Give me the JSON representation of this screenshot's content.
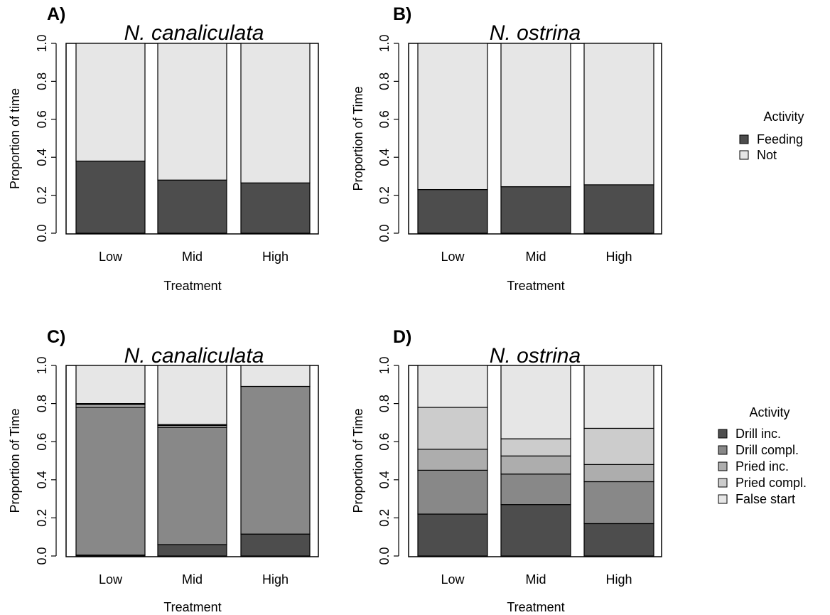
{
  "panels": [
    {
      "letter": "A)",
      "title": "N. canaliculata",
      "ylabel": "Proportion of time",
      "xlabel": "Treatment"
    },
    {
      "letter": "B)",
      "title": "N. ostrina",
      "ylabel": "Proportion of Time",
      "xlabel": "Treatment"
    },
    {
      "letter": "C)",
      "title": "N. canaliculata",
      "ylabel": "Proportion of Time",
      "xlabel": "Treatment"
    },
    {
      "letter": "D)",
      "title": "N. ostrina",
      "ylabel": "Proportion of Time",
      "xlabel": "Treatment"
    }
  ],
  "legends": [
    {
      "title": "Activity",
      "items": [
        {
          "label": "Feeding",
          "color": "#4d4d4d"
        },
        {
          "label": "Not",
          "color": "#e6e6e6"
        }
      ]
    },
    {
      "title": "Activity",
      "items": [
        {
          "label": "Drill inc.",
          "color": "#4d4d4d"
        },
        {
          "label": "Drill compl.",
          "color": "#888888"
        },
        {
          "label": "Pried inc.",
          "color": "#adadad"
        },
        {
          "label": "Pried compl.",
          "color": "#cccccc"
        },
        {
          "label": "False start",
          "color": "#e6e6e6"
        }
      ]
    }
  ],
  "chart_data": [
    {
      "type": "bar",
      "stacked": true,
      "title": "N. canaliculata",
      "xlabel": "Treatment",
      "ylabel": "Proportion of time",
      "ylim": [
        0,
        1
      ],
      "yticks": [
        "0.0",
        "0.2",
        "0.4",
        "0.6",
        "0.8",
        "1.0"
      ],
      "categories": [
        "Low",
        "Mid",
        "High"
      ],
      "series": [
        {
          "name": "Feeding",
          "color": "#4d4d4d",
          "values": [
            0.38,
            0.28,
            0.265
          ]
        },
        {
          "name": "Not",
          "color": "#e6e6e6",
          "values": [
            0.62,
            0.72,
            0.735
          ]
        }
      ]
    },
    {
      "type": "bar",
      "stacked": true,
      "title": "N. ostrina",
      "xlabel": "Treatment",
      "ylabel": "Proportion of Time",
      "ylim": [
        0,
        1
      ],
      "yticks": [
        "0.0",
        "0.2",
        "0.4",
        "0.6",
        "0.8",
        "1.0"
      ],
      "categories": [
        "Low",
        "Mid",
        "High"
      ],
      "series": [
        {
          "name": "Feeding",
          "color": "#4d4d4d",
          "values": [
            0.23,
            0.245,
            0.255
          ]
        },
        {
          "name": "Not",
          "color": "#e6e6e6",
          "values": [
            0.77,
            0.755,
            0.745
          ]
        }
      ]
    },
    {
      "type": "bar",
      "stacked": true,
      "title": "N. canaliculata",
      "xlabel": "Treatment",
      "ylabel": "Proportion of Time",
      "ylim": [
        0,
        1
      ],
      "yticks": [
        "0.0",
        "0.2",
        "0.4",
        "0.6",
        "0.8",
        "1.0"
      ],
      "categories": [
        "Low",
        "Mid",
        "High"
      ],
      "series": [
        {
          "name": "Drill inc.",
          "color": "#4d4d4d",
          "values": [
            0.005,
            0.06,
            0.115
          ]
        },
        {
          "name": "Drill compl.",
          "color": "#888888",
          "values": [
            0.775,
            0.615,
            0.775
          ]
        },
        {
          "name": "Pried inc.",
          "color": "#adadad",
          "values": [
            0.015,
            0.01,
            0.0
          ]
        },
        {
          "name": "Pried compl.",
          "color": "#cccccc",
          "values": [
            0.005,
            0.005,
            0.0
          ]
        },
        {
          "name": "False start",
          "color": "#e6e6e6",
          "values": [
            0.2,
            0.31,
            0.11
          ]
        }
      ]
    },
    {
      "type": "bar",
      "stacked": true,
      "title": "N. ostrina",
      "xlabel": "Treatment",
      "ylabel": "Proportion of Time",
      "ylim": [
        0,
        1
      ],
      "yticks": [
        "0.0",
        "0.2",
        "0.4",
        "0.6",
        "0.8",
        "1.0"
      ],
      "categories": [
        "Low",
        "Mid",
        "High"
      ],
      "series": [
        {
          "name": "Drill inc.",
          "color": "#4d4d4d",
          "values": [
            0.22,
            0.27,
            0.17
          ]
        },
        {
          "name": "Drill compl.",
          "color": "#888888",
          "values": [
            0.23,
            0.16,
            0.22
          ]
        },
        {
          "name": "Pried inc.",
          "color": "#adadad",
          "values": [
            0.11,
            0.095,
            0.09
          ]
        },
        {
          "name": "Pried compl.",
          "color": "#cccccc",
          "values": [
            0.22,
            0.09,
            0.19
          ]
        },
        {
          "name": "False start",
          "color": "#e6e6e6",
          "values": [
            0.22,
            0.385,
            0.33
          ]
        }
      ]
    }
  ]
}
